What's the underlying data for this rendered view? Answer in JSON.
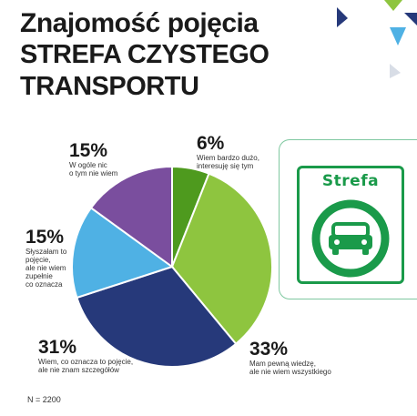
{
  "title": {
    "line1": "Znajomość pojęcia",
    "line2": "STREFA CZYSTEGO",
    "line3": "TRANSPORTU"
  },
  "chart_data": {
    "type": "pie",
    "title": "Znajomość pojęcia STREFA CZYSTEGO TRANSPORTU",
    "start_angle_deg": 0,
    "direction": "clockwise",
    "slices": [
      {
        "label": "6%",
        "value": 6,
        "description": "Wiem bardzo dużo,\ninteresuję się tym",
        "color": "#4e9a1e"
      },
      {
        "label": "33%",
        "value": 33,
        "description": "Mam pewną wiedzę,\nale nie wiem wszystkiego",
        "color": "#8ec53f"
      },
      {
        "label": "31%",
        "value": 31,
        "description": "Wiem, co oznacza to pojęcie,\nale nie znam szczegółów",
        "color": "#26397a"
      },
      {
        "label": "15%",
        "value": 15,
        "description": "Słyszałam to\npojęcie,\nale nie wiem\nzupełnie\nco oznacza",
        "color": "#4fb1e4"
      },
      {
        "label": "15%",
        "value": 15,
        "description": "W ogóle nic\no tym nie wiem",
        "color": "#7a4e9e"
      }
    ]
  },
  "sign": {
    "text": "Strefa",
    "icon": "car-icon",
    "color": "#1a9a4a"
  },
  "note": "N = 2200"
}
